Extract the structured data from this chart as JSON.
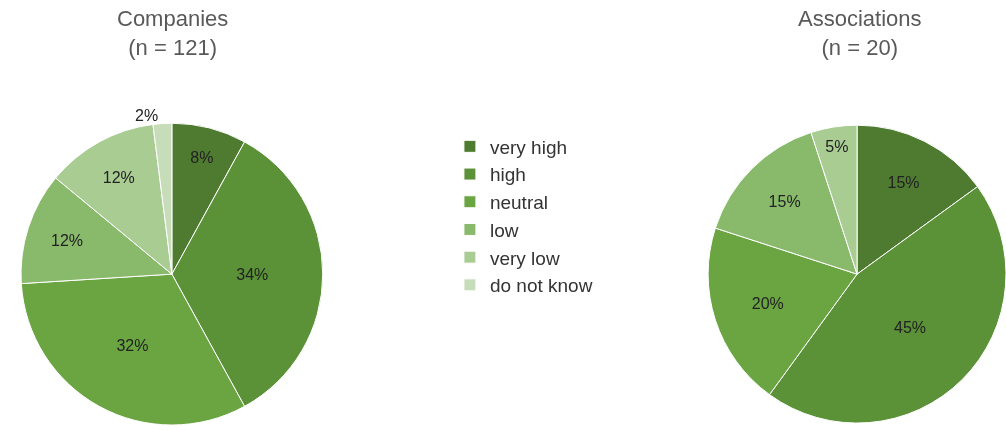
{
  "chart_data": [
    {
      "type": "pie",
      "title": "Companies\n(n = 121)",
      "categories": [
        "very high",
        "high",
        "neutral",
        "low",
        "very low",
        "do not know"
      ],
      "values": [
        8,
        34,
        32,
        12,
        12,
        2
      ],
      "value_labels": [
        "8%",
        "34%",
        "32%",
        "12%",
        "12%",
        "2%"
      ],
      "colors": [
        "#4e7b30",
        "#5b9137",
        "#6aa542",
        "#89b96a",
        "#a9cc93",
        "#c7dcb9"
      ],
      "legend": "right"
    },
    {
      "type": "pie",
      "title": "Associations\n(n = 20)",
      "categories": [
        null,
        null,
        null,
        null,
        null
      ],
      "values": [
        15,
        45,
        20,
        15,
        5
      ],
      "value_labels": [
        "15%",
        "45%",
        "20%",
        "15%",
        "5%"
      ],
      "colors": [
        "#4e7b30",
        "#5b9137",
        "#6aa542",
        "#89b96a",
        "#a9cc93"
      ]
    }
  ]
}
